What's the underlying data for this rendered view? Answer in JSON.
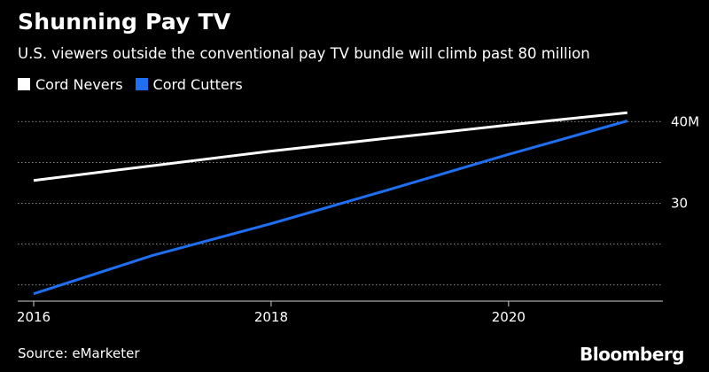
{
  "header": {
    "title": "Shunning Pay TV",
    "subtitle": "U.S. viewers outside the conventional pay TV bundle will climb past 80 million"
  },
  "footer": {
    "source": "Source: eMarketer",
    "brand": "Bloomberg"
  },
  "colors": {
    "background": "#000000",
    "cord_nevers": "#ffffff",
    "cord_cutters": "#1f6ff2",
    "grid": "#8a8a8a"
  },
  "chart_data": {
    "type": "line",
    "title": "Shunning Pay TV",
    "subtitle": "U.S. viewers outside the conventional pay TV bundle will climb past 80 million",
    "x": [
      2016,
      2017,
      2018,
      2019,
      2020,
      2021
    ],
    "xlim": [
      2016,
      2021.3
    ],
    "x_ticks": [
      2016,
      2018,
      2020
    ],
    "x_tick_labels": [
      "2016",
      "2018",
      "2020"
    ],
    "ylim": [
      18,
      42
    ],
    "y_ticks": [
      40,
      30
    ],
    "y_tick_labels": [
      "40M",
      "30"
    ],
    "y_gridlines": [
      40,
      35,
      30,
      25,
      20
    ],
    "grid": true,
    "legend_position": "top-left",
    "series": [
      {
        "name": "Cord Nevers",
        "color": "#ffffff",
        "values": [
          32.8,
          34.6,
          36.4,
          38.0,
          39.6,
          41.1
        ]
      },
      {
        "name": "Cord Cutters",
        "color": "#1f6ff2",
        "values": [
          18.9,
          23.6,
          27.5,
          31.7,
          36.0,
          40.1
        ]
      }
    ]
  }
}
